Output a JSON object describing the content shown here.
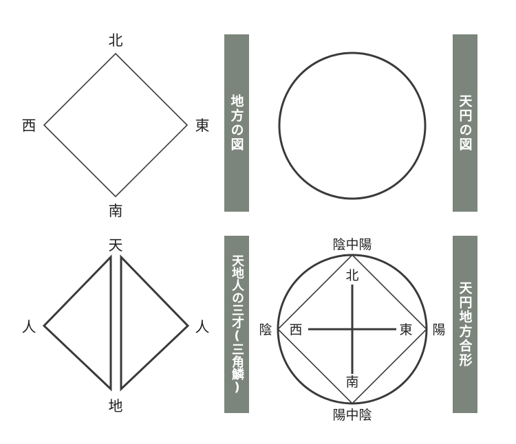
{
  "colors": {
    "bar_fill": "#7b857b",
    "line": "#3a3a3a"
  },
  "panels": {
    "chifang": {
      "title": "地方の図",
      "north": "北",
      "south": "南",
      "west": "西",
      "east": "東"
    },
    "tenen": {
      "title": "天円の図"
    },
    "sansai": {
      "title": "天地人の三才(三角鱗)",
      "top": "天",
      "bottom": "地",
      "left": "人",
      "right": "人"
    },
    "gokei": {
      "title": "天円地方合形",
      "top_outer": "陰中陽",
      "bottom_outer": "陽中陰",
      "left_outer": "陰",
      "right_outer": "陽",
      "north": "北",
      "south": "南",
      "west": "西",
      "east": "東"
    }
  }
}
